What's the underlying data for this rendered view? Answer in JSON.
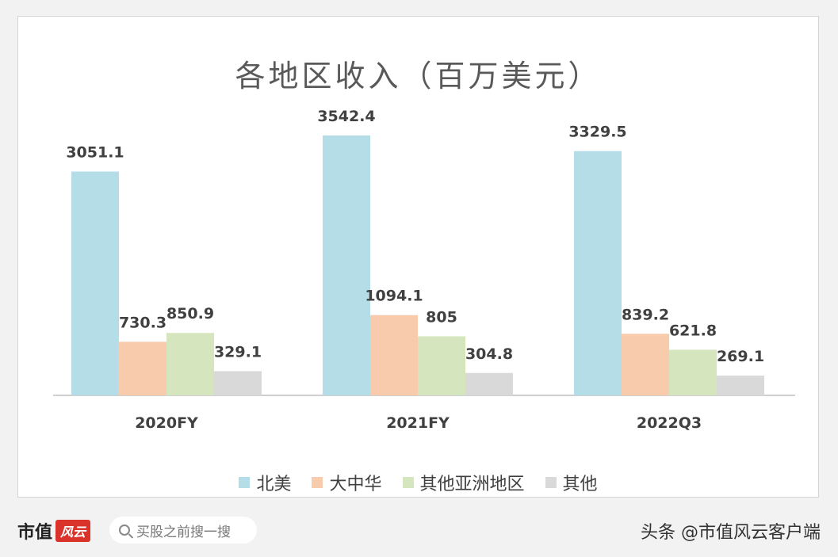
{
  "chart_data": {
    "type": "bar",
    "title": "各地区收入（百万美元）",
    "categories": [
      "2020FY",
      "2021FY",
      "2022Q3"
    ],
    "series": [
      {
        "name": "北美",
        "values": [
          3051.1,
          3542.4,
          3329.5
        ],
        "color": "#b4dde7"
      },
      {
        "name": "大中华",
        "values": [
          730.3,
          1094.1,
          839.2
        ],
        "color": "#f8cbad"
      },
      {
        "name": "其他亚洲地区",
        "values": [
          850.9,
          805,
          621.8
        ],
        "color": "#d5e6bf"
      },
      {
        "name": "其他",
        "values": [
          329.1,
          304.8,
          269.1
        ],
        "color": "#d9d9d9"
      }
    ],
    "data_labels": [
      [
        "3051.1",
        "3542.4",
        "3329.5"
      ],
      [
        "730.3",
        "1094.1",
        "839.2"
      ],
      [
        "850.9",
        "805",
        "621.8"
      ],
      [
        "329.1",
        "304.8",
        "269.1"
      ]
    ],
    "ylim": [
      0,
      3542.4
    ],
    "grid": false,
    "legend_position": "bottom"
  },
  "footer": {
    "brand_text": "市值",
    "brand_mark": "风云",
    "search_placeholder": "买股之前搜一搜",
    "attribution": "头条 @市值风云客户端"
  }
}
